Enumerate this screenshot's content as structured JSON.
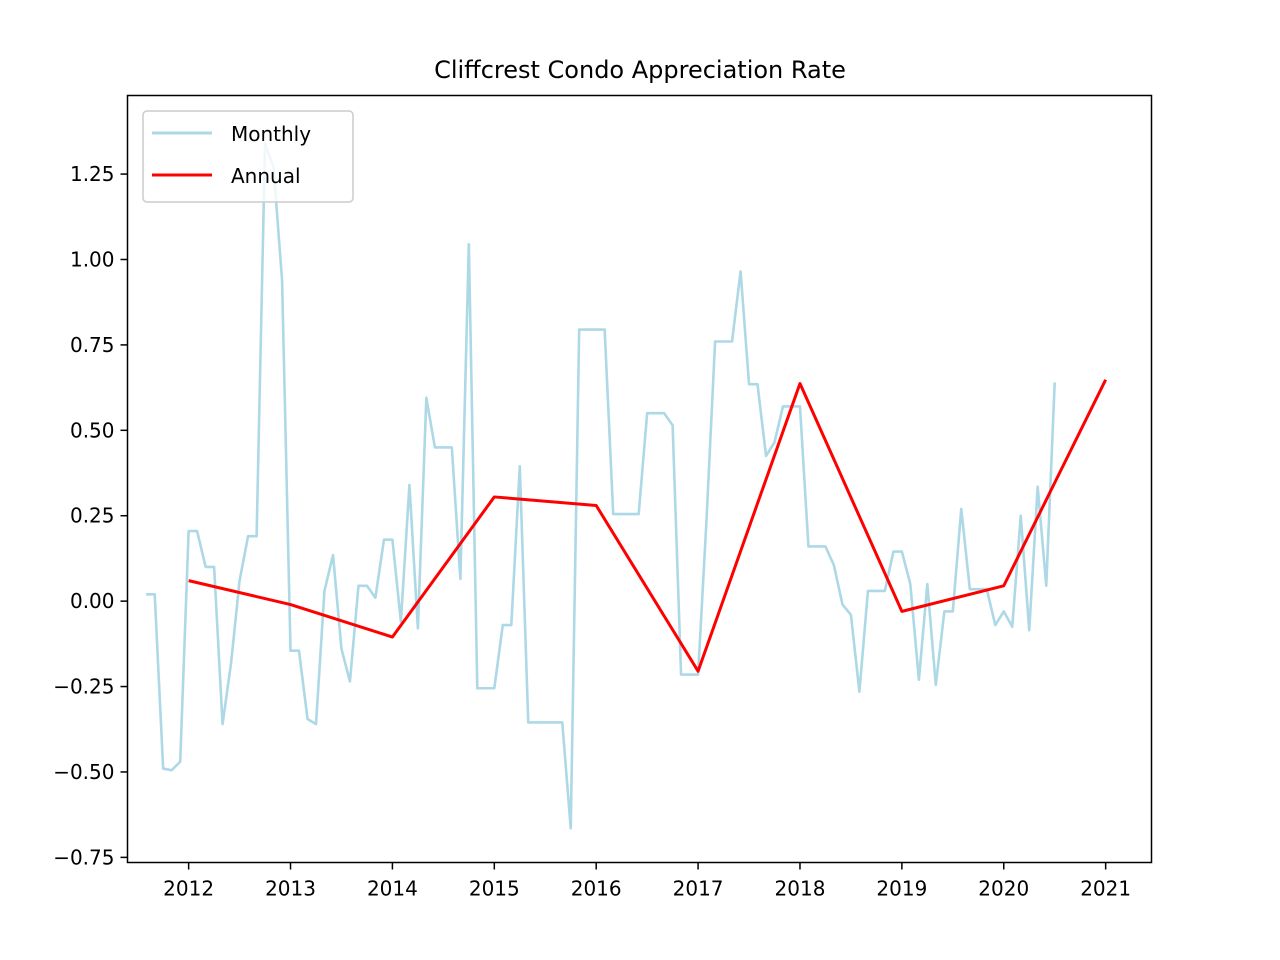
{
  "chart_data": {
    "type": "line",
    "title": "Cliffcrest Condo Appreciation Rate",
    "xlabel": "",
    "ylabel": "",
    "xlim": [
      2011.4,
      2021.45
    ],
    "ylim": [
      -0.765,
      1.48
    ],
    "x_ticks": [
      2012,
      2013,
      2014,
      2015,
      2016,
      2017,
      2018,
      2019,
      2020,
      2021
    ],
    "y_ticks": [
      -0.75,
      -0.5,
      -0.25,
      0.0,
      0.25,
      0.5,
      0.75,
      1.0,
      1.25
    ],
    "y_tick_labels": [
      "−0.75",
      "−0.50",
      "−0.25",
      "0.00",
      "0.25",
      "0.50",
      "0.75",
      "1.00",
      "1.25"
    ],
    "grid": false,
    "legend_position": "top-left",
    "series": [
      {
        "name": "Monthly",
        "color": "#add8e6",
        "x": [
          2011.583,
          2011.667,
          2011.75,
          2011.833,
          2011.917,
          2012.0,
          2012.083,
          2012.167,
          2012.25,
          2012.333,
          2012.417,
          2012.5,
          2012.583,
          2012.667,
          2012.75,
          2012.833,
          2012.917,
          2013.0,
          2013.083,
          2013.167,
          2013.25,
          2013.333,
          2013.417,
          2013.5,
          2013.583,
          2013.667,
          2013.75,
          2013.833,
          2013.917,
          2014.0,
          2014.083,
          2014.167,
          2014.25,
          2014.333,
          2014.417,
          2014.5,
          2014.583,
          2014.667,
          2014.75,
          2014.833,
          2014.917,
          2015.0,
          2015.083,
          2015.167,
          2015.25,
          2015.333,
          2015.417,
          2015.5,
          2015.583,
          2015.667,
          2015.75,
          2015.833,
          2015.917,
          2016.0,
          2016.083,
          2016.167,
          2016.25,
          2016.333,
          2016.417,
          2016.5,
          2016.583,
          2016.667,
          2016.75,
          2016.833,
          2016.917,
          2017.0,
          2017.083,
          2017.167,
          2017.25,
          2017.333,
          2017.417,
          2017.5,
          2017.583,
          2017.667,
          2017.75,
          2017.833,
          2017.917,
          2018.0,
          2018.083,
          2018.167,
          2018.25,
          2018.333,
          2018.417,
          2018.5,
          2018.583,
          2018.667,
          2018.75,
          2018.833,
          2018.917,
          2019.0,
          2019.083,
          2019.167,
          2019.25,
          2019.333,
          2019.417,
          2019.5,
          2019.583,
          2019.667,
          2019.75,
          2019.833,
          2019.917,
          2020.0,
          2020.083,
          2020.167,
          2020.25,
          2020.333,
          2020.417,
          2020.5
        ],
        "values": [
          0.02,
          0.02,
          -0.49,
          -0.495,
          -0.47,
          0.205,
          0.205,
          0.1,
          0.1,
          -0.36,
          -0.18,
          0.06,
          0.19,
          0.19,
          1.34,
          1.27,
          0.94,
          -0.145,
          -0.145,
          -0.345,
          -0.36,
          0.03,
          0.135,
          -0.14,
          -0.235,
          0.045,
          0.045,
          0.01,
          0.18,
          0.18,
          -0.06,
          0.34,
          -0.08,
          0.595,
          0.45,
          0.45,
          0.45,
          0.065,
          1.045,
          -0.255,
          -0.255,
          -0.255,
          -0.07,
          -0.07,
          0.395,
          -0.355,
          -0.355,
          -0.355,
          -0.355,
          -0.355,
          -0.665,
          0.795,
          0.795,
          0.795,
          0.795,
          0.255,
          0.255,
          0.255,
          0.255,
          0.55,
          0.55,
          0.55,
          0.515,
          -0.215,
          -0.215,
          -0.215,
          0.24,
          0.76,
          0.76,
          0.76,
          0.965,
          0.635,
          0.635,
          0.425,
          0.465,
          0.57,
          0.57,
          0.57,
          0.16,
          0.16,
          0.16,
          0.105,
          -0.01,
          -0.04,
          -0.265,
          0.03,
          0.03,
          0.03,
          0.145,
          0.145,
          0.05,
          -0.23,
          0.05,
          -0.245,
          -0.03,
          -0.03,
          0.27,
          0.035,
          0.035,
          0.035,
          -0.07,
          -0.03,
          -0.075,
          0.25,
          -0.085,
          0.335,
          0.045,
          0.64
        ]
      },
      {
        "name": "Annual",
        "color": "#ff0000",
        "x": [
          2012,
          2013,
          2014,
          2015,
          2016,
          2017,
          2018,
          2019,
          2020,
          2021
        ],
        "values": [
          0.06,
          -0.01,
          -0.105,
          0.305,
          0.28,
          -0.205,
          0.637,
          -0.03,
          0.045,
          0.648
        ]
      }
    ]
  }
}
